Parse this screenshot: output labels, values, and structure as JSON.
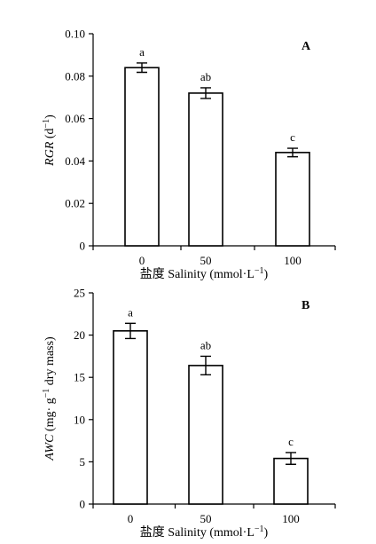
{
  "chart_data": [
    {
      "type": "bar",
      "panel_label": "A",
      "categories": [
        "0",
        "50",
        "100"
      ],
      "values": [
        0.084,
        0.072,
        0.044
      ],
      "errors": [
        0.0022,
        0.0025,
        0.002
      ],
      "significance": [
        "a",
        "ab",
        "c"
      ],
      "ylabel": {
        "italic": "RGR",
        "plain": " (d",
        "sup": "−1",
        "end": ")"
      },
      "xlabel": {
        "plain": "盐度 Salinity (mmol·L",
        "sup": "−1",
        "end": ")"
      },
      "ylim": [
        0,
        0.1
      ],
      "yticks": [
        "0",
        "0.02",
        "0.04",
        "0.06",
        "0.08",
        "0.10"
      ],
      "ytick_values": [
        0,
        0.02,
        0.04,
        0.06,
        0.08,
        0.1
      ],
      "grid": false
    },
    {
      "type": "bar",
      "panel_label": "B",
      "categories": [
        "0",
        "50",
        "100"
      ],
      "values": [
        20.5,
        16.4,
        5.4
      ],
      "errors": [
        0.9,
        1.1,
        0.7
      ],
      "significance": [
        "a",
        "ab",
        "c"
      ],
      "ylabel": {
        "italic": "AWC",
        "plain": " (mg· g",
        "sup": "−1",
        "end": " dry mass)"
      },
      "xlabel": {
        "plain": "盐度 Salinity (mmol·L",
        "sup": "−1",
        "end": ")"
      },
      "ylim": [
        0,
        25
      ],
      "yticks": [
        "0",
        "5",
        "10",
        "15",
        "20",
        "25"
      ],
      "ytick_values": [
        0,
        5,
        10,
        15,
        20,
        25
      ],
      "grid": false
    }
  ]
}
